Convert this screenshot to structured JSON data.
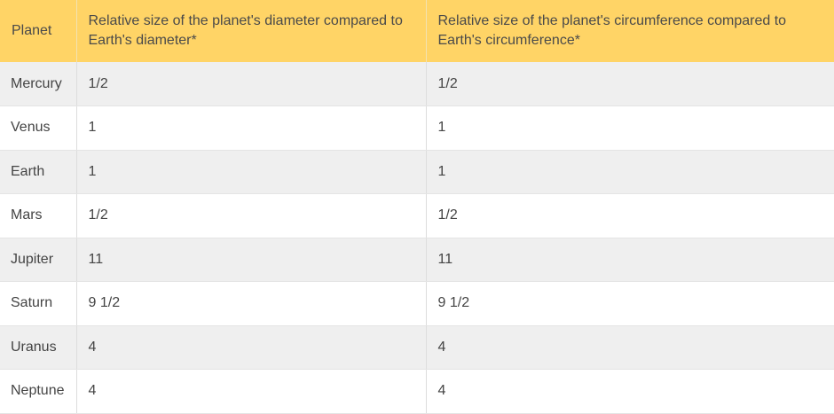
{
  "table": {
    "headers": [
      "Planet",
      "Relative size of the planet's diameter compared to Earth's diameter*",
      "Relative size of the planet's circumference compared to Earth's circumference*"
    ],
    "rows": [
      [
        "Mercury",
        "1/2",
        "1/2"
      ],
      [
        "Venus",
        "1",
        "1"
      ],
      [
        "Earth",
        "1",
        "1"
      ],
      [
        "Mars",
        "1/2",
        "1/2"
      ],
      [
        "Jupiter",
        "11",
        "11"
      ],
      [
        "Saturn",
        "9 1/2",
        "9 1/2"
      ],
      [
        "Uranus",
        "4",
        "4"
      ],
      [
        "Neptune",
        "4",
        "4"
      ]
    ]
  },
  "colors": {
    "header_bg": "#ffd466",
    "stripe_bg": "#efefef",
    "text": "#444444"
  }
}
